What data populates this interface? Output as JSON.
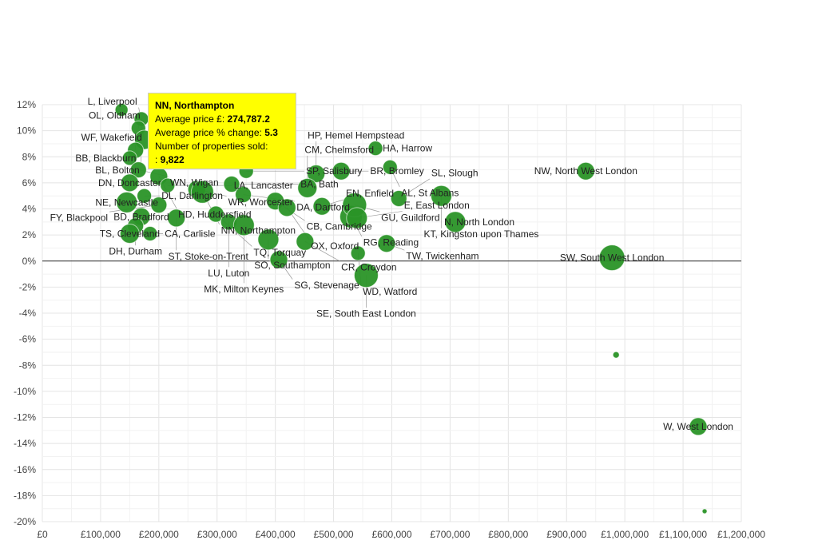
{
  "chart_data": {
    "type": "scatter",
    "title": "",
    "xlabel": "",
    "ylabel": "",
    "xlim": [
      0,
      1200000
    ],
    "ylim": [
      -20,
      12
    ],
    "x_ticks": [
      "£0",
      "£100,000",
      "£200,000",
      "£300,000",
      "£400,000",
      "£500,000",
      "£600,000",
      "£700,000",
      "£800,000",
      "£900,000",
      "£1,000,000",
      "£1,100,000",
      "£1,200,000"
    ],
    "y_ticks": [
      "12%",
      "10%",
      "8%",
      "6%",
      "4%",
      "2%",
      "0%",
      "-2%",
      "-4%",
      "-6%",
      "-8%",
      "-10%",
      "-12%",
      "-14%",
      "-16%",
      "-18%",
      "-20%"
    ],
    "grid": true,
    "bubble_color": "#2a9327",
    "points": [
      {
        "label": "",
        "x": 136000,
        "y": 11.6,
        "size": 8
      },
      {
        "label": "BL, Bolton",
        "x": 170000,
        "y": 10.9,
        "size": 9
      },
      {
        "label": "OL, Oldham",
        "x": 165000,
        "y": 10.2,
        "size": 9
      },
      {
        "label": "L, Liverpool",
        "x": 175000,
        "y": 9.3,
        "size": 12
      },
      {
        "label": "WF, Wakefield",
        "x": 160000,
        "y": 8.5,
        "size": 10
      },
      {
        "label": "BB, Blackburn",
        "x": 150000,
        "y": 7.9,
        "size": 9
      },
      {
        "label": "WN, Wigan",
        "x": 165000,
        "y": 7.0,
        "size": 10
      },
      {
        "label": "HD, Huddersfield",
        "x": 200000,
        "y": 6.5,
        "size": 11
      },
      {
        "label": "DN, Doncaster",
        "x": 150000,
        "y": 6.0,
        "size": 11
      },
      {
        "label": "LA, Lancaster",
        "x": 215000,
        "y": 5.8,
        "size": 9
      },
      {
        "label": "WR, Worcester",
        "x": 265000,
        "y": 5.5,
        "size": 11
      },
      {
        "label": "NN, Northampton",
        "x": 274787.2,
        "y": 5.3,
        "size": 14
      },
      {
        "label": "DL, Darlington",
        "x": 175000,
        "y": 5.0,
        "size": 9
      },
      {
        "label": "NE, Newcastle",
        "x": 145000,
        "y": 4.5,
        "size": 13
      },
      {
        "label": "FY, Blackpool",
        "x": 200000,
        "y": 4.3,
        "size": 10
      },
      {
        "label": "BD, Bradford",
        "x": 170000,
        "y": 3.4,
        "size": 11
      },
      {
        "label": "ST, Stoke-on-Trent",
        "x": 230000,
        "y": 3.3,
        "size": 11
      },
      {
        "label": "DH, Durham",
        "x": 160000,
        "y": 2.7,
        "size": 10
      },
      {
        "label": "TS, Cleveland",
        "x": 150000,
        "y": 2.1,
        "size": 12
      },
      {
        "label": "CA, Carlisle",
        "x": 185000,
        "y": 2.1,
        "size": 9
      },
      {
        "label": "SP, Salisbury",
        "x": 350000,
        "y": 6.9,
        "size": 9
      },
      {
        "label": "BA, Bath",
        "x": 325000,
        "y": 5.9,
        "size": 10
      },
      {
        "label": "DA, Dartford",
        "x": 345000,
        "y": 5.1,
        "size": 10
      },
      {
        "label": "CB, Cambridge",
        "x": 400000,
        "y": 4.6,
        "size": 11
      },
      {
        "label": "TQ, Torquay",
        "x": 298000,
        "y": 3.6,
        "size": 10
      },
      {
        "label": "LU, Luton",
        "x": 320000,
        "y": 3.0,
        "size": 10
      },
      {
        "label": "MK, Milton Keynes",
        "x": 346000,
        "y": 2.75,
        "size": 13
      },
      {
        "label": "HP, Hemel Hempstead",
        "x": 470000,
        "y": 6.7,
        "size": 11
      },
      {
        "label": "CM, Chelmsford",
        "x": 455000,
        "y": 5.6,
        "size": 12
      },
      {
        "label": "OX, Oxford",
        "x": 420000,
        "y": 4.1,
        "size": 11
      },
      {
        "label": "RG, Reading",
        "x": 530000,
        "y": 3.4,
        "size": 14
      },
      {
        "label": "EN, Enfield",
        "x": 480000,
        "y": 4.2,
        "size": 11
      },
      {
        "label": "GU, Guildford",
        "x": 536000,
        "y": 4.3,
        "size": 15
      },
      {
        "label": "BR, Bromley",
        "x": 513000,
        "y": 6.9,
        "size": 11
      },
      {
        "label": "HA, Harrow",
        "x": 572000,
        "y": 8.65,
        "size": 9
      },
      {
        "label": "AL, St Albans",
        "x": 597000,
        "y": 7.2,
        "size": 9
      },
      {
        "label": "SL, Slough",
        "x": 612000,
        "y": 4.8,
        "size": 10
      },
      {
        "label": "KT, Kingston upon Thames",
        "x": 685000,
        "y": 5.0,
        "size": 13
      },
      {
        "label": "NW, North West London",
        "x": 933000,
        "y": 6.9,
        "size": 11
      },
      {
        "label": "N, North London",
        "x": 709000,
        "y": 3.0,
        "size": 13
      },
      {
        "label": "E, East London",
        "x": 540000,
        "y": 3.3,
        "size": 13
      },
      {
        "label": "SO, Southampton",
        "x": 388000,
        "y": 1.65,
        "size": 13
      },
      {
        "label": "CR, Croydon",
        "x": 451000,
        "y": 1.5,
        "size": 11
      },
      {
        "label": "TW, Twickenham",
        "x": 591000,
        "y": 1.35,
        "size": 11
      },
      {
        "label": "WD, Watford",
        "x": 542000,
        "y": 0.6,
        "size": 9
      },
      {
        "label": "SG, Stevenage",
        "x": 406000,
        "y": 0.1,
        "size": 11
      },
      {
        "label": "SE, South East London",
        "x": 556000,
        "y": -1.1,
        "size": 15
      },
      {
        "label": "SW, South West London",
        "x": 978000,
        "y": 0.25,
        "size": 16
      },
      {
        "label": "",
        "x": 985000,
        "y": -7.2,
        "size": 4
      },
      {
        "label": "W, West London",
        "x": 1126000,
        "y": -12.7,
        "size": 11
      },
      {
        "label": "",
        "x": 1137000,
        "y": -19.2,
        "size": 3
      }
    ]
  },
  "tooltip": {
    "title": "NN, Northampton",
    "price_label": "Average price £:",
    "price_value": "274,787.2",
    "change_label": "Average price % change:",
    "change_value": "5.3",
    "sold_label": "Number of properties sold:",
    "sold_value": "9,822"
  }
}
